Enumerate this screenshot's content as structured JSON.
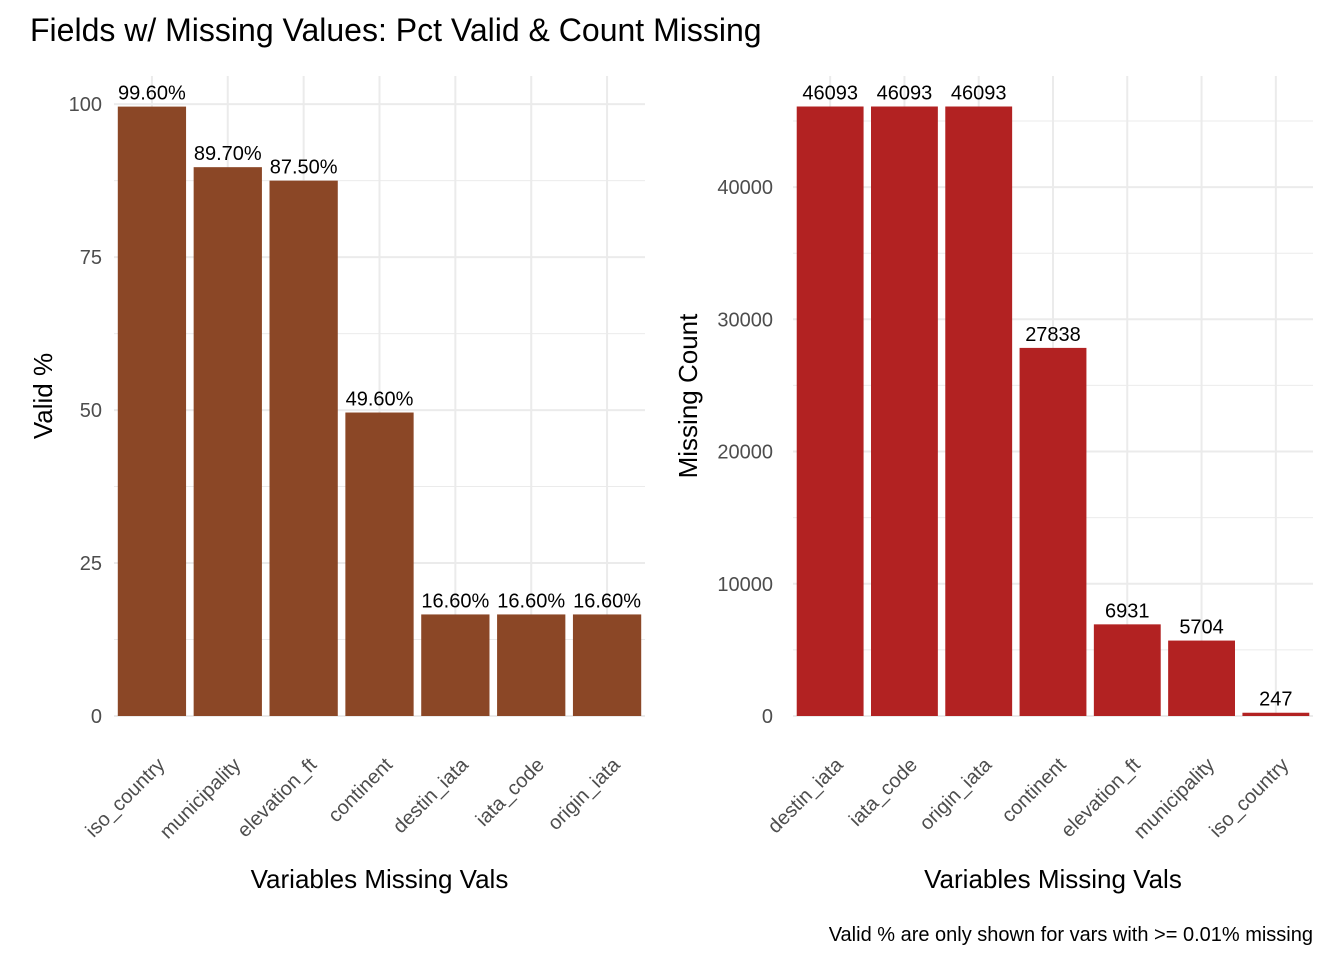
{
  "title": "Fields w/ Missing Values: Pct Valid & Count Missing",
  "caption": "Valid % are only shown for vars with >= 0.01% missing",
  "colors": {
    "left_bar": "#8b4726",
    "right_bar": "#b22222",
    "grid": "#ebebeb",
    "axis_text": "#4d4d4d",
    "text": "#000000"
  },
  "chart_data": [
    {
      "type": "bar",
      "ylabel": "Valid %",
      "xlabel": "Variables Missing Vals",
      "ylim": [
        0,
        104.6
      ],
      "yticks": [
        0,
        25,
        50,
        75,
        100
      ],
      "categories": [
        "iso_country",
        "municipality",
        "elevation_ft",
        "continent",
        "destin_iata",
        "iata_code",
        "origin_iata"
      ],
      "values": [
        99.6,
        89.7,
        87.5,
        49.6,
        16.6,
        16.6,
        16.6
      ],
      "data_labels": [
        "99.60%",
        "89.70%",
        "87.50%",
        "49.60%",
        "16.60%",
        "16.60%",
        "16.60%"
      ],
      "grid": true
    },
    {
      "type": "bar",
      "ylabel": "Missing Count",
      "xlabel": "Variables Missing Vals",
      "ylim": [
        0,
        48400
      ],
      "yticks": [
        0,
        10000,
        20000,
        30000,
        40000
      ],
      "categories": [
        "destin_iata",
        "iata_code",
        "origin_iata",
        "continent",
        "elevation_ft",
        "municipality",
        "iso_country"
      ],
      "values": [
        46093,
        46093,
        46093,
        27838,
        6931,
        5704,
        247
      ],
      "data_labels": [
        "46093",
        "46093",
        "46093",
        "27838",
        "6931",
        "5704",
        "247"
      ],
      "grid": true
    }
  ]
}
